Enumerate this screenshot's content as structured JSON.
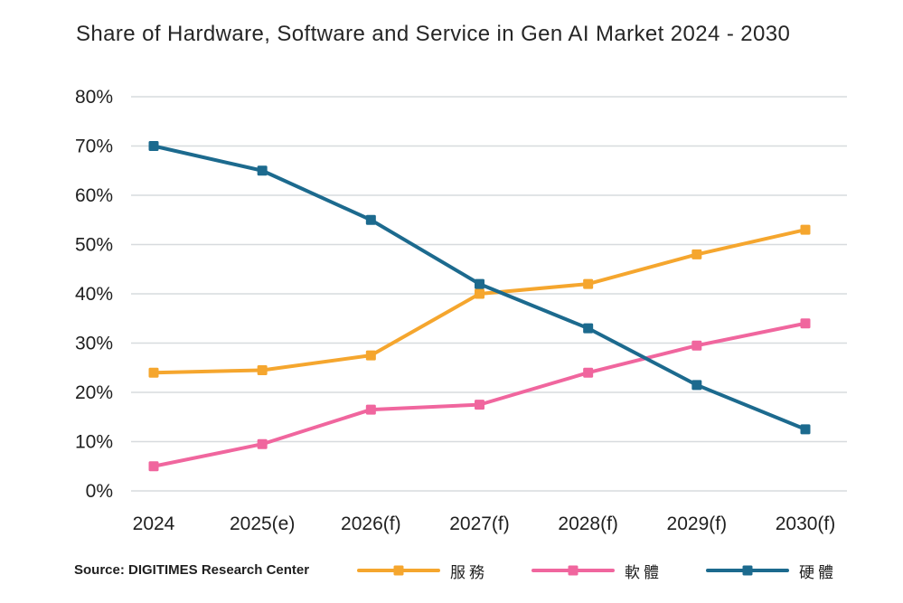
{
  "page": {
    "background": "#ffffff"
  },
  "chart_data": {
    "type": "line",
    "title": "Share of Hardware, Software and Service in Gen AI Market 2024 - 2030",
    "categories": [
      "2024",
      "2025(e)",
      "2026(f)",
      "2027(f)",
      "2028(f)",
      "2029(f)",
      "2030(f)"
    ],
    "series": [
      {
        "name": "服務",
        "color": "#F5A62E",
        "marker": "square",
        "values": [
          24,
          24.5,
          27.5,
          40,
          42,
          48,
          53
        ]
      },
      {
        "name": "軟體",
        "color": "#F0669E",
        "marker": "square",
        "values": [
          5,
          9.5,
          16.5,
          17.5,
          24,
          29.5,
          34
        ]
      },
      {
        "name": "硬體",
        "color": "#1C6A8E",
        "marker": "square",
        "values": [
          70,
          65,
          55,
          42,
          33,
          21.5,
          12.5
        ]
      }
    ],
    "ylim": [
      0,
      80
    ],
    "y_tick_labels": [
      "0%",
      "10%",
      "20%",
      "30%",
      "40%",
      "50%",
      "60%",
      "70%",
      "80%"
    ],
    "grid": true,
    "legend_position": "bottom"
  },
  "footer": {
    "source": "Source: DIGITIMES Research Center"
  },
  "colors": {
    "gridline": "#D7DBDE",
    "axis_text": "#1f1f1f",
    "title_text": "#262626"
  }
}
